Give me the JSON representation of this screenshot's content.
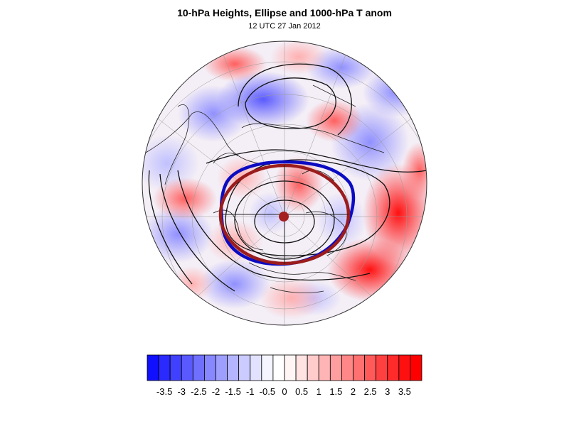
{
  "title": "10-hPa Heights, Ellipse and 1000-hPa T anom",
  "subtitle": "12 UTC 27 Jan 2012",
  "colorbar": {
    "labels": [
      "-3.5",
      "-3",
      "-2.5",
      "-2",
      "-1.5",
      "-1",
      "-0.5",
      "0",
      "0.5",
      "1",
      "1.5",
      "2",
      "2.5",
      "3",
      "3.5"
    ],
    "min": -4,
    "max": 4,
    "colors": [
      "#1010ff",
      "#2a2aff",
      "#4040ff",
      "#5959ff",
      "#7070ff",
      "#8787ff",
      "#9e9eff",
      "#b5b5ff",
      "#cbcbff",
      "#e2e2ff",
      "#f5f5ff",
      "#ffffff",
      "#fff5f5",
      "#ffe2e2",
      "#ffcbcb",
      "#ffb5b5",
      "#ff9e9e",
      "#ff8787",
      "#ff7070",
      "#ff5959",
      "#ff4040",
      "#ff2a2a",
      "#ff1010",
      "#ff0000"
    ]
  },
  "map": {
    "projection": "polar stereographic (north pole centered)",
    "field": "1000-hPa temperature anomaly (shaded)",
    "contours": "10-hPa geopotential heights (black lines)",
    "vortex_ellipse_color": "#9b1c1c",
    "vortex_edge_color": "#0b0bc2",
    "pole_marker_color": "#a52020"
  }
}
